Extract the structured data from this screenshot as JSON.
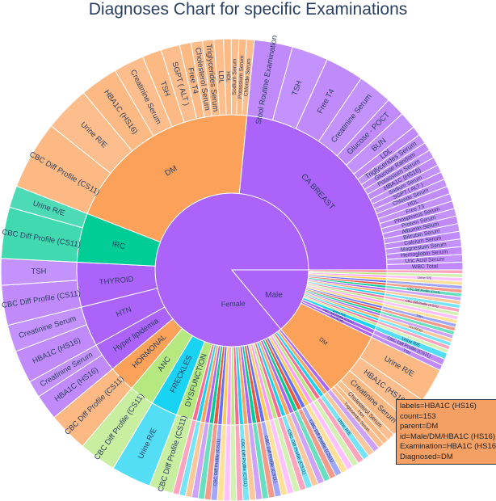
{
  "chart_data": {
    "type": "sunburst",
    "title": "Diagnoses Chart for specific Examinations",
    "rings": [
      "gender",
      "diagnosis",
      "examination"
    ],
    "inner": [
      {
        "label": "Female",
        "color": "#ab63fa",
        "share": 0.86
      },
      {
        "label": "Male",
        "color": "#ab63fa",
        "share": 0.14
      }
    ],
    "female_diagnoses": [
      {
        "label": "CA BREAST",
        "color": "#ab63fa",
        "share": 0.252,
        "exams": [
          {
            "label": "Stool Routine Examination",
            "share": 0.1
          },
          {
            "label": "TSH",
            "share": 0.095
          },
          {
            "label": "Free T4",
            "share": 0.1
          },
          {
            "label": "Creatinine Serum",
            "share": 0.09
          },
          {
            "label": "Glucose - POCT",
            "share": 0.05
          },
          {
            "label": "BUN",
            "share": 0.045
          },
          {
            "label": "LDL",
            "share": 0.025
          },
          {
            "label": "Triglycerides Serum",
            "share": 0.025
          },
          {
            "label": "Glucose Random",
            "share": 0.022
          },
          {
            "label": "Potassium Serum",
            "share": 0.022
          },
          {
            "label": "HBA1C (HS16)",
            "share": 0.022
          },
          {
            "label": "Sodium Serum",
            "share": 0.02
          },
          {
            "label": "SGPT ( ALT )",
            "share": 0.02
          },
          {
            "label": "Chloride Serum",
            "share": 0.02
          },
          {
            "label": "HDL",
            "share": 0.02
          },
          {
            "label": "Free T3",
            "share": 0.02
          },
          {
            "label": "Phosphorus Serum",
            "share": 0.02
          },
          {
            "label": "Protein Serum",
            "share": 0.02
          },
          {
            "label": "Albumin Serum",
            "share": 0.02
          },
          {
            "label": "Bilirubin Serum",
            "share": 0.02
          },
          {
            "label": "Calcium Serum",
            "share": 0.02
          },
          {
            "label": "Magnesium Serum",
            "share": 0.02
          },
          {
            "label": "Hemoglobin Serum",
            "share": 0.02
          },
          {
            "label": "Uric Acid Serum",
            "share": 0.02
          },
          {
            "label": "WBC Total",
            "share": 0.02
          }
        ]
      },
      {
        "label": "DM",
        "color": "#fca15a",
        "share": 0.222,
        "exams": [
          {
            "label": "CBC Diff Profile (CS11)",
            "share": 0.18
          },
          {
            "label": "Urine R/E",
            "share": 0.12
          },
          {
            "label": "HBA1C (HS16)",
            "share": 0.1
          },
          {
            "label": "Creatinine Serum",
            "share": 0.08
          },
          {
            "label": "TSH",
            "share": 0.05
          },
          {
            "label": "SGPT ( ALT )",
            "share": 0.05
          },
          {
            "label": "Free T4",
            "share": 0.03
          },
          {
            "label": "Cholesterol Serum",
            "share": 0.03
          },
          {
            "label": "Triglycerides Serum",
            "share": 0.03
          },
          {
            "label": "LDL",
            "share": 0.025
          },
          {
            "label": "HDL",
            "share": 0.02
          },
          {
            "label": "Sodium Serum",
            "share": 0.02
          },
          {
            "label": "Potassium Serum",
            "share": 0.02
          },
          {
            "label": "Chloride Serum",
            "share": 0.02
          }
        ]
      },
      {
        "label": "IRC",
        "color": "#00cc96",
        "share": 0.055,
        "exams": [
          {
            "label": "CBC Diff Profile (CS11)",
            "share": 0.7
          },
          {
            "label": "Urine R/E",
            "share": 0.3
          }
        ]
      },
      {
        "label": "THYROID",
        "color": "#ab63fa",
        "share": 0.05,
        "exams": [
          {
            "label": "CBC Diff Profile (CS11)",
            "share": 0.6
          },
          {
            "label": "TSH",
            "share": 0.4
          }
        ]
      },
      {
        "label": "HTN",
        "color": "#ab63fa",
        "share": 0.045,
        "exams": [
          {
            "label": "HBA1C (HS16)",
            "share": 0.55
          },
          {
            "label": "Creatinine Serum",
            "share": 0.45
          }
        ]
      },
      {
        "label": "Hyper lipidemia",
        "color": "#ab63fa",
        "share": 0.032,
        "exams": [
          {
            "label": "HBA1C (HS16)",
            "share": 0.6
          },
          {
            "label": "Creatinine Serum",
            "share": 0.4
          }
        ]
      },
      {
        "label": "HORMONAL",
        "color": "#fca15a",
        "share": 0.03,
        "exams": [
          {
            "label": "CBC Diff Profile (CS11)",
            "share": 1
          }
        ]
      },
      {
        "label": "ANC",
        "color": "#b6e880",
        "share": 0.028,
        "exams": [
          {
            "label": "CBC Diff Profile (CS11)",
            "share": 1
          }
        ]
      },
      {
        "label": "FRECKLES",
        "color": "#19d3f3",
        "share": 0.03,
        "exams": [
          {
            "label": "Urine R/E",
            "share": 1
          }
        ]
      },
      {
        "label": "DYSFUNCTION",
        "color": "#b6e880",
        "share": 0.018,
        "exams": [
          {
            "label": "CBC Diff Profile (CS11)",
            "share": 1
          }
        ]
      }
    ],
    "male_diagnoses": [
      {
        "label": "DM",
        "color": "#fca15a",
        "share": 0.62,
        "exams": [
          {
            "label": "Urine R/E",
            "share": 0.35
          },
          {
            "label": "HBA1C (HS16)",
            "share": 0.25
          },
          {
            "label": "Creatinine Serum",
            "share": 0.2
          },
          {
            "label": "Cholesterol Serum",
            "share": 0.08
          },
          {
            "label": "TSH",
            "share": 0.06
          },
          {
            "label": "Triglycerides Serum",
            "share": 0.06
          }
        ]
      },
      {
        "label": "Urine R/E",
        "color": "#19d3f3",
        "share": 0.04,
        "exams": [
          {
            "label": "Urine R/E",
            "share": 1
          }
        ]
      },
      {
        "label": "CBC Diff Profile (CS11)",
        "color": "#ab63fa",
        "share": 0.04,
        "exams": [
          {
            "label": "CBC Diff Profile (CS11)",
            "share": 1
          }
        ]
      },
      {
        "label": "THYROID",
        "color": "#ab63fa",
        "share": 0.035,
        "exams": [
          {
            "label": "TSH",
            "share": 1
          }
        ]
      }
    ],
    "right_side_tiny_labels": [
      "Urine R/E",
      "CBC Diff Profile (CS11)",
      "CBC Diff Profile (CS11)",
      "TSH",
      "THYROID"
    ],
    "bottom_tiny_labels": [
      "Urine R/E",
      "CBC Diff Profile (CS11)",
      "CBC Diff Profile (CS11)",
      "CBC Diff Profile (CS11)",
      "CBC Diff Profile (CS11)",
      "CBC Diff Profile (CS11)"
    ],
    "tooltip": [
      "labels=HBA1C (HS16)",
      "count=153",
      "parent=DM",
      "id=Male/DM/HBA1C (HS16)",
      "Examination=HBA1C (HS16)",
      "Diagnosed=DM"
    ]
  }
}
